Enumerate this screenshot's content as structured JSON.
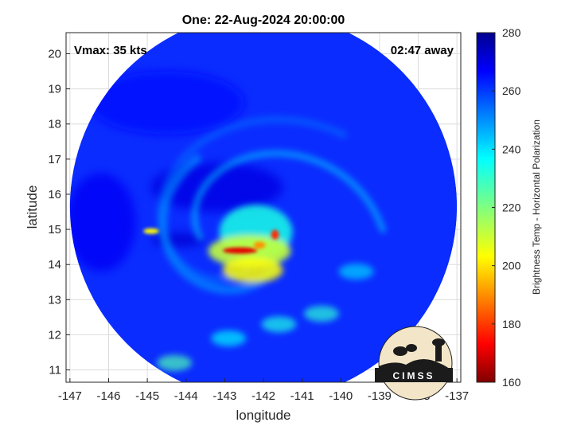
{
  "chart_data": {
    "type": "heatmap",
    "title": "One: 22-Aug-2024 20:00:00",
    "xlabel": "longitude",
    "ylabel": "latitude",
    "xlim": [
      -147.1,
      -136.9
    ],
    "ylim": [
      10.65,
      20.6
    ],
    "xticks": [
      -147,
      -146,
      -145,
      -144,
      -143,
      -142,
      -141,
      -140,
      -139,
      -138,
      -137
    ],
    "yticks": [
      11,
      12,
      13,
      14,
      15,
      16,
      17,
      18,
      19,
      20
    ],
    "grid": true,
    "annotations": {
      "left": "Vmax: 35 kts",
      "right": "02:47 away"
    },
    "colorbar": {
      "label": "Brightness Temp - Horizontal Polarization",
      "min": 160,
      "max": 280,
      "ticks": [
        160,
        180,
        200,
        220,
        240,
        260,
        280
      ],
      "colormap": "jet"
    },
    "swath": {
      "center_lon": -142.0,
      "center_lat": 15.65,
      "radius_deg": 5.0
    },
    "storm_center": {
      "lon": -142.4,
      "lat": 14.7
    },
    "cold_features": [
      {
        "lon": -142.6,
        "lat": 14.4,
        "tb": 172,
        "rx": 0.45,
        "ry": 0.09
      },
      {
        "lon": -141.7,
        "lat": 14.85,
        "tb": 180,
        "rx": 0.1,
        "ry": 0.14
      },
      {
        "lon": -142.1,
        "lat": 14.55,
        "tb": 192,
        "rx": 0.15,
        "ry": 0.1
      },
      {
        "lon": -144.9,
        "lat": 14.95,
        "tb": 205,
        "rx": 0.2,
        "ry": 0.08
      }
    ],
    "warm_features": [
      {
        "lon": -143.2,
        "lat": 16.2,
        "tb": 268,
        "rx": 1.7,
        "ry": 0.7
      },
      {
        "lon": -146.2,
        "lat": 15.2,
        "tb": 266,
        "rx": 0.9,
        "ry": 1.4
      },
      {
        "lon": -144.5,
        "lat": 18.6,
        "tb": 264,
        "rx": 2.0,
        "ry": 0.9
      },
      {
        "lon": -144.2,
        "lat": 14.7,
        "tb": 270,
        "rx": 0.7,
        "ry": 0.2
      }
    ]
  },
  "logo": {
    "text": "CIMSS"
  }
}
